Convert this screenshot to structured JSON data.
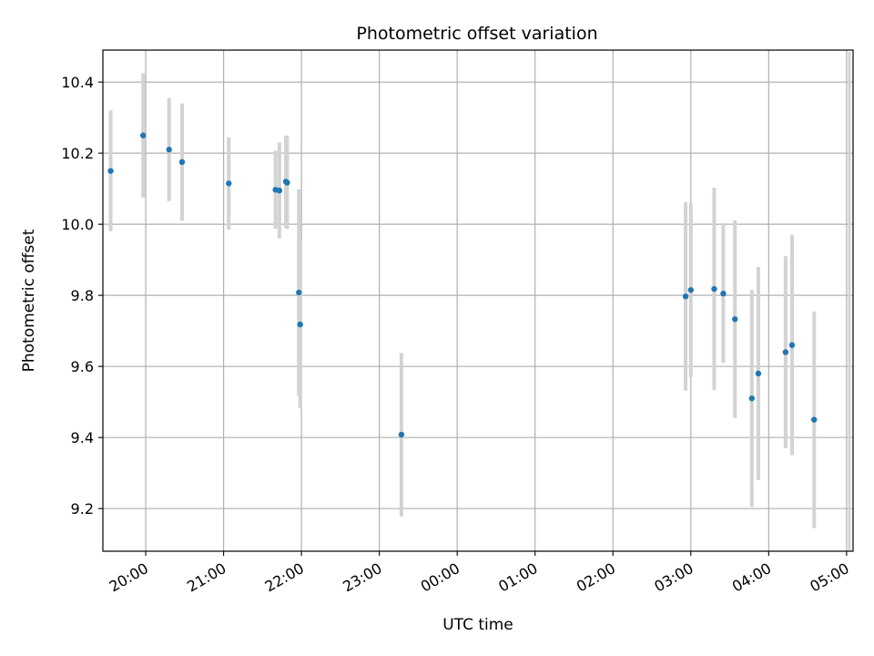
{
  "chart_data": {
    "type": "scatter",
    "title": "Photometric offset variation",
    "xlabel": "UTC time",
    "ylabel": "Photometric offset",
    "x_ticks": [
      "20:00",
      "21:00",
      "22:00",
      "23:00",
      "00:00",
      "01:00",
      "02:00",
      "03:00",
      "04:00",
      "05:00"
    ],
    "y_ticks": [
      "9.2",
      "9.4",
      "9.6",
      "9.8",
      "10.0",
      "10.2",
      "10.4"
    ],
    "xlim": [
      "19:27",
      "05:05"
    ],
    "ylim": [
      9.08,
      10.49
    ],
    "grid": true,
    "marker_color": "#1f77b4",
    "errorbar_color": "#d3d3d3",
    "series": [
      {
        "x": [
          "19:33",
          "19:58",
          "20:18",
          "20:28",
          "21:04",
          "21:40",
          "21:43",
          "21:48",
          "21:49",
          "21:58",
          "21:59",
          "23:17",
          "02:56",
          "03:00",
          "03:18",
          "03:25",
          "03:34",
          "03:47",
          "03:52",
          "04:13",
          "04:18",
          "04:35"
        ],
        "y": [
          10.15,
          10.25,
          10.21,
          10.175,
          10.115,
          10.097,
          10.095,
          10.12,
          10.117,
          9.808,
          9.718,
          9.408,
          9.797,
          9.815,
          9.818,
          9.805,
          9.733,
          9.51,
          9.58,
          9.64,
          9.66,
          9.45
        ],
        "err": [
          0.17,
          0.175,
          0.145,
          0.165,
          0.13,
          0.11,
          0.135,
          0.13,
          0.13,
          0.29,
          0.235,
          0.23,
          0.265,
          0.245,
          0.285,
          0.195,
          0.278,
          0.305,
          0.3,
          0.27,
          0.31,
          0.305
        ]
      }
    ]
  }
}
